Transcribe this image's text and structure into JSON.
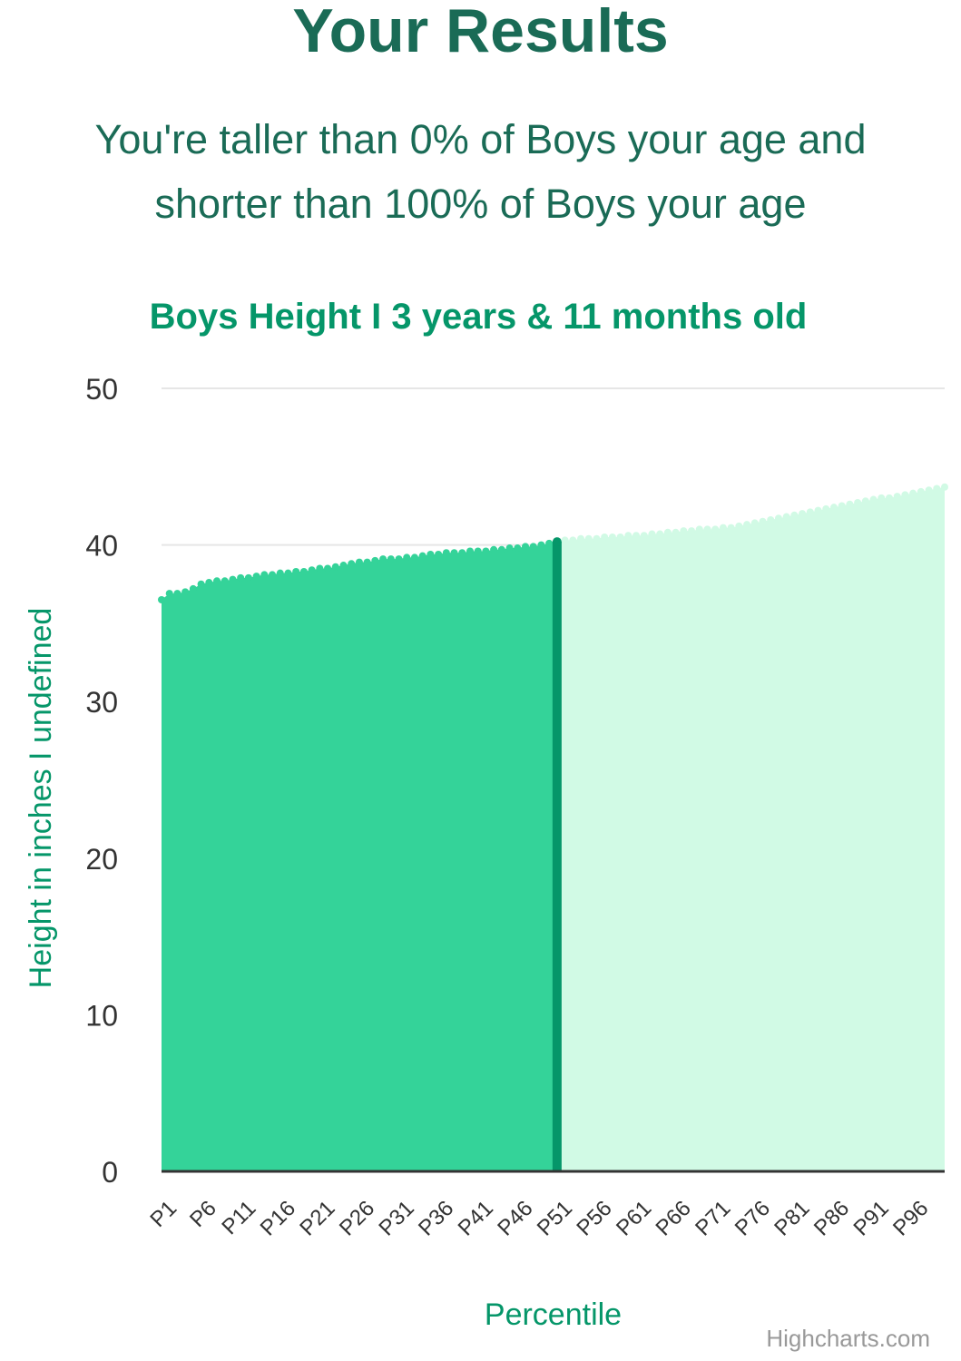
{
  "header": {
    "title": "Your Results",
    "summary_line1": "You're taller than 0% of Boys your age and",
    "summary_line2": "shorter than 100% of Boys your age"
  },
  "chart_data": {
    "type": "area",
    "title": "Boys Height I 3 years & 11 months old",
    "xlabel": "Percentile",
    "ylabel": "Height in inches I undefined",
    "credit": "Highcharts.com",
    "ylim": [
      0,
      50
    ],
    "y_ticks": [
      0,
      10,
      20,
      30,
      40,
      50
    ],
    "grid": true,
    "x_tick_labels": [
      "P1",
      "P6",
      "P11",
      "P16",
      "P21",
      "P26",
      "P31",
      "P36",
      "P41",
      "P46",
      "P51",
      "P56",
      "P61",
      "P66",
      "P71",
      "P76",
      "P81",
      "P86",
      "P91",
      "P96"
    ],
    "marker_percentile": 51,
    "colors": {
      "filled_area": "#34d399",
      "remaining_area": "#d1fae5",
      "marker": "#059669",
      "title": "#059669",
      "axis_title": "#059669",
      "grid": "#e6e6e6",
      "baseline": "#333333"
    },
    "series": [
      {
        "percentiles": [
          1,
          2,
          3,
          4,
          5,
          6,
          7,
          8,
          9,
          10,
          11,
          12,
          13,
          14,
          15,
          16,
          17,
          18,
          19,
          20,
          21,
          22,
          23,
          24,
          25,
          26,
          27,
          28,
          29,
          30,
          31,
          32,
          33,
          34,
          35,
          36,
          37,
          38,
          39,
          40,
          41,
          42,
          43,
          44,
          45,
          46,
          47,
          48,
          49,
          50,
          51,
          52,
          53,
          54,
          55,
          56,
          57,
          58,
          59,
          60,
          61,
          62,
          63,
          64,
          65,
          66,
          67,
          68,
          69,
          70,
          71,
          72,
          73,
          74,
          75,
          76,
          77,
          78,
          79,
          80,
          81,
          82,
          83,
          84,
          85,
          86,
          87,
          88,
          89,
          90,
          91,
          92,
          93,
          94,
          95,
          96,
          97,
          98,
          99,
          100
        ],
        "values": [
          36.5,
          36.9,
          36.9,
          37.0,
          37.2,
          37.5,
          37.6,
          37.7,
          37.7,
          37.8,
          37.9,
          37.9,
          38.0,
          38.1,
          38.1,
          38.2,
          38.2,
          38.3,
          38.3,
          38.4,
          38.5,
          38.5,
          38.6,
          38.7,
          38.8,
          38.9,
          38.9,
          39.0,
          39.1,
          39.1,
          39.1,
          39.2,
          39.2,
          39.3,
          39.4,
          39.4,
          39.5,
          39.5,
          39.5,
          39.6,
          39.6,
          39.6,
          39.7,
          39.7,
          39.8,
          39.8,
          39.9,
          39.9,
          40.0,
          40.1,
          40.2,
          40.3,
          40.3,
          40.4,
          40.4,
          40.4,
          40.5,
          40.5,
          40.5,
          40.6,
          40.6,
          40.6,
          40.7,
          40.7,
          40.8,
          40.8,
          40.9,
          40.9,
          41.0,
          41.0,
          41.0,
          41.1,
          41.1,
          41.2,
          41.3,
          41.4,
          41.5,
          41.6,
          41.7,
          41.8,
          41.9,
          42.0,
          42.1,
          42.2,
          42.3,
          42.4,
          42.5,
          42.6,
          42.7,
          42.8,
          42.9,
          43.0,
          43.0,
          43.1,
          43.2,
          43.3,
          43.4,
          43.5,
          43.6,
          43.7
        ]
      }
    ]
  }
}
